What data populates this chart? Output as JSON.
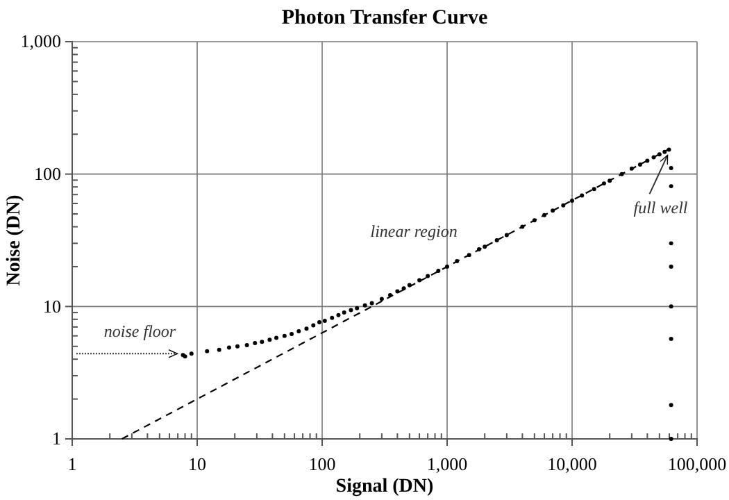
{
  "chart_data": {
    "type": "scatter",
    "title": "Photon Transfer Curve",
    "xlabel": "Signal (DN)",
    "ylabel": "Noise (DN)",
    "log": "xy",
    "grid": true,
    "xlim": [
      1,
      100000
    ],
    "ylim": [
      1,
      1000
    ],
    "xticks": [
      1,
      10,
      100,
      {
        "value": 1000,
        "label": "1,000"
      },
      {
        "value": 10000,
        "label": "10,000"
      },
      {
        "value": 100000,
        "label": "100,000"
      }
    ],
    "yticks": [
      1,
      10,
      100,
      {
        "value": 1000,
        "label": "1,000"
      }
    ],
    "series": [
      {
        "color": "#000000",
        "marker": "circle",
        "x": [
          7.7,
          8,
          9,
          12,
          15,
          18,
          21,
          25,
          29,
          33,
          38,
          43,
          50,
          57,
          65,
          75,
          85,
          95,
          105,
          120,
          135,
          150,
          170,
          190,
          220,
          250,
          300,
          350,
          400,
          450,
          500,
          600,
          700,
          850,
          1000,
          1200,
          1500,
          1800,
          2000,
          2500,
          3000,
          4000,
          5000,
          6000,
          7000,
          8500,
          10000,
          12000,
          15000,
          18000,
          20000,
          25000,
          30000,
          35000,
          40000,
          45000,
          50000,
          55000,
          59600,
          62000,
          62000,
          62000,
          62000,
          62000,
          62000,
          62000,
          62000
        ],
        "values": [
          4.3,
          4.2,
          4.4,
          4.6,
          4.7,
          4.9,
          5.0,
          5.1,
          5.3,
          5.4,
          5.6,
          5.8,
          6.0,
          6.2,
          6.5,
          6.8,
          7.2,
          7.6,
          7.8,
          8.2,
          8.6,
          9.0,
          9.4,
          9.7,
          10.2,
          10.6,
          11.4,
          12.2,
          13,
          13.7,
          14.5,
          15.8,
          17,
          18.6,
          20,
          22,
          24.5,
          27,
          28.3,
          31.6,
          34.6,
          40,
          44.7,
          49,
          53,
          58,
          63,
          69,
          77,
          85,
          89,
          100,
          110,
          118,
          126,
          134,
          141,
          147,
          153,
          111,
          81,
          30,
          20,
          10,
          5.7,
          1.8,
          1
        ]
      },
      {
        "type": "line",
        "color": "#000000",
        "line_style": "dashed",
        "marker": "none",
        "x": [
          2.5,
          60000
        ],
        "values": [
          1,
          154.9
        ]
      }
    ],
    "annotations": [
      {
        "text": "noise floor",
        "x": 7.5,
        "y": 4.4
      },
      {
        "text": "linear region",
        "x": 700,
        "y": 17
      },
      {
        "text": "full well",
        "x": 59600,
        "y": 153
      }
    ]
  }
}
